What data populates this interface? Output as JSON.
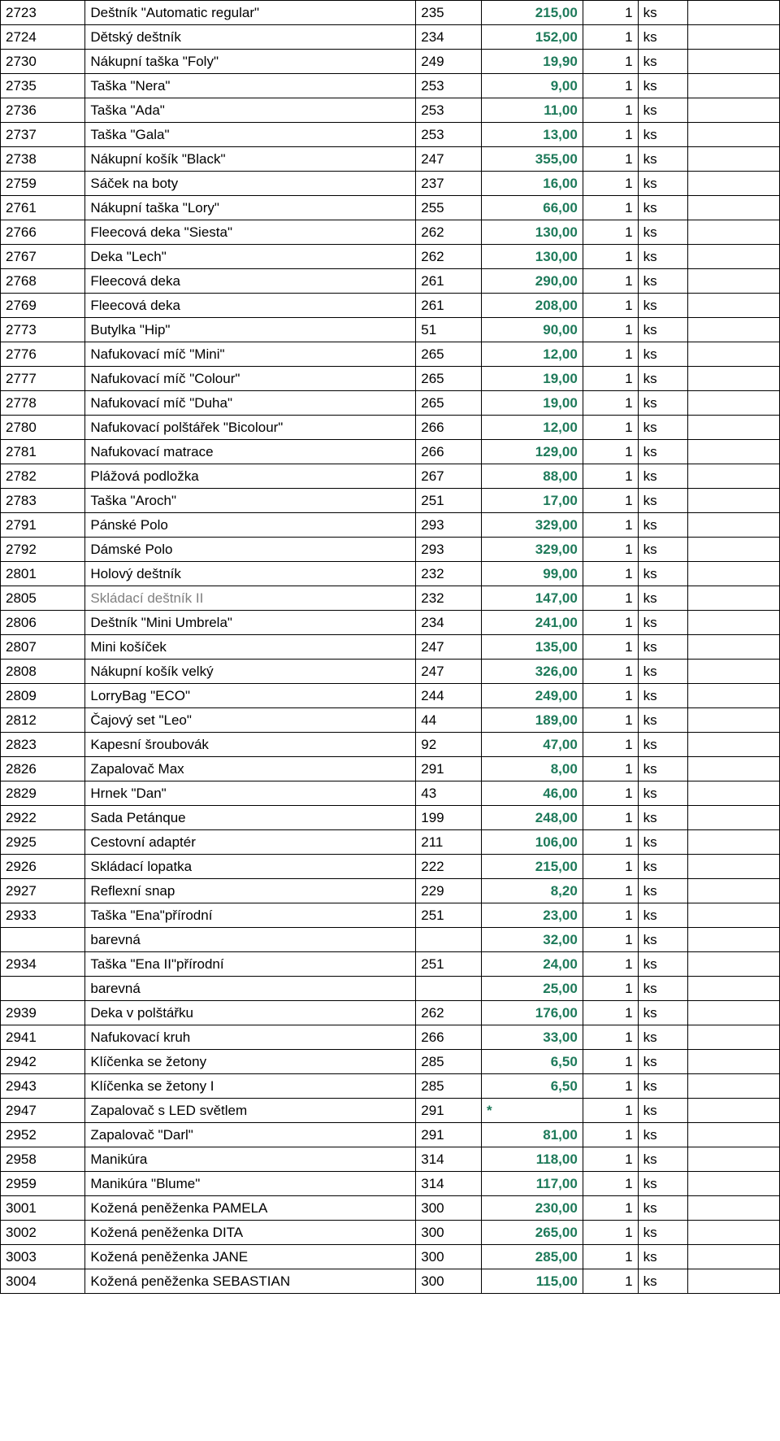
{
  "rows": [
    {
      "code": "2723",
      "name": "Deštník \"Automatic regular\"",
      "cat": "235",
      "price": "215,00",
      "qty": "1",
      "unit": "ks"
    },
    {
      "code": "2724",
      "name": "Dětský deštník",
      "cat": "234",
      "price": "152,00",
      "qty": "1",
      "unit": "ks"
    },
    {
      "code": "2730",
      "name": "Nákupní taška \"Foly\"",
      "cat": "249",
      "price": "19,90",
      "qty": "1",
      "unit": "ks"
    },
    {
      "code": "2735",
      "name": "Taška \"Nera\"",
      "cat": "253",
      "price": "9,00",
      "qty": "1",
      "unit": "ks"
    },
    {
      "code": "2736",
      "name": "Taška \"Ada\"",
      "cat": "253",
      "price": "11,00",
      "qty": "1",
      "unit": "ks"
    },
    {
      "code": "2737",
      "name": "Taška \"Gala\"",
      "cat": "253",
      "price": "13,00",
      "qty": "1",
      "unit": "ks"
    },
    {
      "code": "2738",
      "name": "Nákupní košík \"Black\"",
      "cat": "247",
      "price": "355,00",
      "qty": "1",
      "unit": "ks"
    },
    {
      "code": "2759",
      "name": "Sáček na boty",
      "cat": "237",
      "price": "16,00",
      "qty": "1",
      "unit": "ks"
    },
    {
      "code": "2761",
      "name": "Nákupní taška \"Lory\"",
      "cat": "255",
      "price": "66,00",
      "qty": "1",
      "unit": "ks"
    },
    {
      "code": "2766",
      "name": "Fleecová deka \"Siesta\"",
      "cat": "262",
      "price": "130,00",
      "qty": "1",
      "unit": "ks"
    },
    {
      "code": "2767",
      "name": "Deka \"Lech\"",
      "cat": "262",
      "price": "130,00",
      "qty": "1",
      "unit": "ks"
    },
    {
      "code": "2768",
      "name": "Fleecová deka",
      "cat": "261",
      "price": "290,00",
      "qty": "1",
      "unit": "ks"
    },
    {
      "code": "2769",
      "name": "Fleecová deka",
      "cat": "261",
      "price": "208,00",
      "qty": "1",
      "unit": "ks"
    },
    {
      "code": "2773",
      "name": "Butylka \"Hip\"",
      "cat": "51",
      "price": "90,00",
      "qty": "1",
      "unit": "ks"
    },
    {
      "code": "2776",
      "name": "Nafukovací míč \"Mini\"",
      "cat": "265",
      "price": "12,00",
      "qty": "1",
      "unit": "ks"
    },
    {
      "code": "2777",
      "name": "Nafukovací míč \"Colour\"",
      "cat": "265",
      "price": "19,00",
      "qty": "1",
      "unit": "ks"
    },
    {
      "code": "2778",
      "name": "Nafukovací míč \"Duha\"",
      "cat": "265",
      "price": "19,00",
      "qty": "1",
      "unit": "ks"
    },
    {
      "code": "2780",
      "name": "Nafukovací polštářek \"Bicolour\"",
      "cat": "266",
      "price": "12,00",
      "qty": "1",
      "unit": "ks"
    },
    {
      "code": "2781",
      "name": "Nafukovací matrace",
      "cat": "266",
      "price": "129,00",
      "qty": "1",
      "unit": "ks"
    },
    {
      "code": "2782",
      "name": "Plážová podložka",
      "cat": "267",
      "price": "88,00",
      "qty": "1",
      "unit": "ks"
    },
    {
      "code": "2783",
      "name": "Taška \"Aroch\"",
      "cat": "251",
      "price": "17,00",
      "qty": "1",
      "unit": "ks"
    },
    {
      "code": "2791",
      "name": "Pánské Polo",
      "cat": "293",
      "price": "329,00",
      "qty": "1",
      "unit": "ks"
    },
    {
      "code": "2792",
      "name": "Dámské Polo",
      "cat": "293",
      "price": "329,00",
      "qty": "1",
      "unit": "ks"
    },
    {
      "code": "2801",
      "name": "Holový deštník",
      "cat": "232",
      "price": "99,00",
      "qty": "1",
      "unit": "ks"
    },
    {
      "code": "2805",
      "name": "Skládací deštník II",
      "cat": "232",
      "price": "147,00",
      "qty": "1",
      "unit": "ks",
      "nameGray": true
    },
    {
      "code": "2806",
      "name": "Deštník \"Mini Umbrela\"",
      "cat": "234",
      "price": "241,00",
      "qty": "1",
      "unit": "ks"
    },
    {
      "code": "2807",
      "name": "Mini košíček",
      "cat": "247",
      "price": "135,00",
      "qty": "1",
      "unit": "ks"
    },
    {
      "code": "2808",
      "name": "Nákupní košík velký",
      "cat": "247",
      "price": "326,00",
      "qty": "1",
      "unit": "ks"
    },
    {
      "code": "2809",
      "name": "LorryBag \"ECO\"",
      "cat": "244",
      "price": "249,00",
      "qty": "1",
      "unit": "ks"
    },
    {
      "code": "2812",
      "name": "Čajový set \"Leo\"",
      "cat": "44",
      "price": "189,00",
      "qty": "1",
      "unit": "ks"
    },
    {
      "code": "2823",
      "name": "Kapesní šroubovák",
      "cat": "92",
      "price": "47,00",
      "qty": "1",
      "unit": "ks"
    },
    {
      "code": "2826",
      "name": "Zapalovač Max",
      "cat": "291",
      "price": "8,00",
      "qty": "1",
      "unit": "ks"
    },
    {
      "code": "2829",
      "name": "Hrnek \"Dan\"",
      "cat": "43",
      "price": "46,00",
      "qty": "1",
      "unit": "ks"
    },
    {
      "code": "2922",
      "name": "Sada Petánque",
      "cat": "199",
      "price": "248,00",
      "qty": "1",
      "unit": "ks"
    },
    {
      "code": "2925",
      "name": "Cestovní adaptér",
      "cat": "211",
      "price": "106,00",
      "qty": "1",
      "unit": "ks"
    },
    {
      "code": "2926",
      "name": "Skládací lopatka",
      "cat": "222",
      "price": "215,00",
      "qty": "1",
      "unit": "ks"
    },
    {
      "code": "2927",
      "name": "Reflexní snap",
      "cat": "229",
      "price": "8,20",
      "qty": "1",
      "unit": "ks"
    },
    {
      "code": "2933",
      "name": "Taška \"Ena\"přírodní",
      "cat": "251",
      "price": "23,00",
      "qty": "1",
      "unit": "ks"
    },
    {
      "code": "",
      "name": "barevná",
      "cat": "",
      "price": "32,00",
      "qty": "1",
      "unit": "ks"
    },
    {
      "code": "2934",
      "name": "Taška \"Ena II\"přírodní",
      "cat": "251",
      "price": "24,00",
      "qty": "1",
      "unit": "ks"
    },
    {
      "code": "",
      "name": "barevná",
      "cat": "",
      "price": "25,00",
      "qty": "1",
      "unit": "ks"
    },
    {
      "code": "2939",
      "name": "Deka v polštářku",
      "cat": "262",
      "price": "176,00",
      "qty": "1",
      "unit": "ks"
    },
    {
      "code": "2941",
      "name": "Nafukovací kruh",
      "cat": "266",
      "price": "33,00",
      "qty": "1",
      "unit": "ks"
    },
    {
      "code": "2942",
      "name": "Klíčenka se žetony",
      "cat": "285",
      "price": "6,50",
      "qty": "1",
      "unit": "ks"
    },
    {
      "code": "2943",
      "name": "Klíčenka se žetony I",
      "cat": "285",
      "price": "6,50",
      "qty": "1",
      "unit": "ks"
    },
    {
      "code": "2947",
      "name": "Zapalovač s LED světlem",
      "cat": "291",
      "price": "*",
      "qty": "1",
      "unit": "ks",
      "priceLeft": true
    },
    {
      "code": "2952",
      "name": "Zapalovač \"Darl\"",
      "cat": "291",
      "price": "81,00",
      "qty": "1",
      "unit": "ks"
    },
    {
      "code": "2958",
      "name": "Manikúra",
      "cat": "314",
      "price": "118,00",
      "qty": "1",
      "unit": "ks"
    },
    {
      "code": "2959",
      "name": "Manikúra \"Blume\"",
      "cat": "314",
      "price": "117,00",
      "qty": "1",
      "unit": "ks"
    },
    {
      "code": "3001",
      "name": "Kožená peněženka PAMELA",
      "cat": "300",
      "price": "230,00",
      "qty": "1",
      "unit": "ks"
    },
    {
      "code": "3002",
      "name": "Kožená peněženka DITA",
      "cat": "300",
      "price": "265,00",
      "qty": "1",
      "unit": "ks"
    },
    {
      "code": "3003",
      "name": "Kožená peněženka JANE",
      "cat": "300",
      "price": "285,00",
      "qty": "1",
      "unit": "ks"
    },
    {
      "code": "3004",
      "name": "Kožená peněženka SEBASTIAN",
      "cat": "300",
      "price": "115,00",
      "qty": "1",
      "unit": "ks"
    }
  ]
}
